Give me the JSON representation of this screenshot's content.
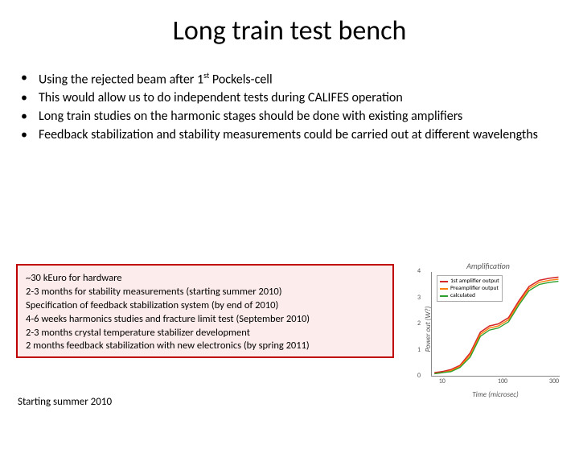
{
  "title": "Long train test bench",
  "bullets": [
    {
      "pre": "Using the rejected beam after 1",
      "sup": "st",
      "post": " Pockels-cell"
    },
    {
      "pre": "This would allow us to do independent tests during CALIFES operation",
      "sup": "",
      "post": ""
    },
    {
      "pre": "Long train studies on the harmonic stages should be done with existing amplifiers",
      "sup": "",
      "post": ""
    },
    {
      "pre": "Feedback stabilization and stability measurements could be carried out at different wavelengths",
      "sup": "",
      "post": ""
    }
  ],
  "box": {
    "border_color": "#c00000",
    "bg_color": "#fdecec",
    "lines": [
      "~30 kEuro for hardware",
      "2-3 months for stability measurements (starting summer 2010)",
      "Specification of feedback stabilization system (by end of 2010)",
      "4-6 weeks harmonics studies and fracture limit test (September 2010)",
      "2-3 months crystal temperature  stabilizer development",
      "2 months feedback stabilization with new electronics (by spring 2011)"
    ]
  },
  "starting": "Starting summer 2010",
  "chart": {
    "title": "Amplification",
    "ylabel": "Power out (W?)",
    "xlabel": "Time (microsec)",
    "ylim": [
      0,
      4
    ],
    "yticks": [
      0,
      1,
      2,
      3,
      4
    ],
    "xticks_labels": [
      "10",
      "100",
      "300"
    ],
    "xticks_pos": [
      0.08,
      0.55,
      0.95
    ],
    "legend": [
      {
        "label": "1st amplifier output",
        "color": "#d62728"
      },
      {
        "label": "Preamplifier output",
        "color": "#ff7f0e"
      },
      {
        "label": "calculated",
        "color": "#2ca02c"
      }
    ],
    "series": [
      {
        "color": "#d62728",
        "width": 1.6,
        "points": [
          [
            0.02,
            0.03
          ],
          [
            0.08,
            0.04
          ],
          [
            0.15,
            0.06
          ],
          [
            0.22,
            0.1
          ],
          [
            0.3,
            0.22
          ],
          [
            0.38,
            0.42
          ],
          [
            0.45,
            0.48
          ],
          [
            0.52,
            0.5
          ],
          [
            0.6,
            0.56
          ],
          [
            0.68,
            0.72
          ],
          [
            0.76,
            0.86
          ],
          [
            0.84,
            0.92
          ],
          [
            0.92,
            0.94
          ],
          [
            0.99,
            0.95
          ]
        ]
      },
      {
        "color": "#ff7f0e",
        "width": 1.4,
        "points": [
          [
            0.02,
            0.02
          ],
          [
            0.08,
            0.03
          ],
          [
            0.15,
            0.05
          ],
          [
            0.22,
            0.09
          ],
          [
            0.3,
            0.2
          ],
          [
            0.38,
            0.4
          ],
          [
            0.45,
            0.46
          ],
          [
            0.52,
            0.48
          ],
          [
            0.6,
            0.54
          ],
          [
            0.68,
            0.7
          ],
          [
            0.76,
            0.84
          ],
          [
            0.84,
            0.9
          ],
          [
            0.92,
            0.92
          ],
          [
            0.99,
            0.93
          ]
        ]
      },
      {
        "color": "#2ca02c",
        "width": 1.4,
        "points": [
          [
            0.02,
            0.02
          ],
          [
            0.08,
            0.03
          ],
          [
            0.15,
            0.04
          ],
          [
            0.22,
            0.08
          ],
          [
            0.3,
            0.18
          ],
          [
            0.38,
            0.38
          ],
          [
            0.45,
            0.44
          ],
          [
            0.52,
            0.46
          ],
          [
            0.6,
            0.52
          ],
          [
            0.68,
            0.68
          ],
          [
            0.76,
            0.82
          ],
          [
            0.84,
            0.88
          ],
          [
            0.92,
            0.9
          ],
          [
            0.99,
            0.91
          ]
        ]
      }
    ],
    "bg": "#ffffff",
    "axis_color": "#888888"
  }
}
